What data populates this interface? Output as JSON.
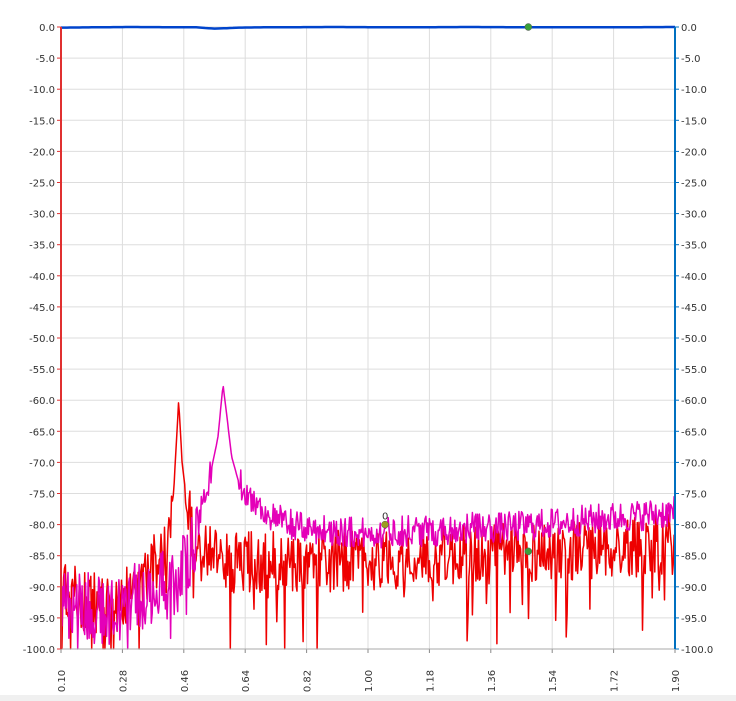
{
  "chart_data": {
    "type": "line",
    "title": "",
    "xlabel": "",
    "ylabel": "",
    "xlim": [
      0.1,
      1.9
    ],
    "ylim": [
      -100.0,
      0.0
    ],
    "x_ticks": [
      "0.10",
      "0.28",
      "0.46",
      "0.64",
      "0.82",
      "1.00",
      "1.18",
      "1.36",
      "1.54",
      "1.72",
      "1.90"
    ],
    "y_ticks_left": [
      "0.0",
      "-5.0",
      "-10.0",
      "-15.0",
      "-20.0",
      "-25.0",
      "-30.0",
      "-35.0",
      "-40.0",
      "-45.0",
      "-50.0",
      "-55.0",
      "-60.0",
      "-65.0",
      "-70.0",
      "-75.0",
      "-80.0",
      "-85.0",
      "-90.0",
      "-95.0",
      "-100.0"
    ],
    "y_ticks_right": [
      "0.0",
      "-5.0",
      "-10.0",
      "-15.0",
      "-20.0",
      "-25.0",
      "-30.0",
      "-35.0",
      "-40.0",
      "-45.0",
      "-50.0",
      "-55.0",
      "-60.0",
      "-65.0",
      "-70.0",
      "-75.0",
      "-80.0",
      "-85.0",
      "-90.0",
      "-95.0",
      "-100.0"
    ],
    "grid": true,
    "colors": {
      "red": "#ee0000",
      "magenta": "#e400b8",
      "blue": "#0044cc",
      "left_axis": "#e03030",
      "right_axis": "#0070c0",
      "grid": "#dddddd",
      "marker": "#9c9c20"
    },
    "series": [
      {
        "color": "red",
        "x": [
          0.1,
          0.16,
          0.22,
          0.28,
          0.34,
          0.38,
          0.41,
          0.43,
          0.445,
          0.455,
          0.47,
          0.49,
          0.51,
          0.55,
          0.6,
          0.7,
          0.8,
          0.9,
          1.0,
          1.1,
          1.2,
          1.3,
          1.4,
          1.5,
          1.6,
          1.7,
          1.8,
          1.9
        ],
        "y": [
          -91,
          -92,
          -93,
          -92,
          -89,
          -86,
          -82,
          -75,
          -60,
          -70,
          -77,
          -83,
          -84,
          -85,
          -86,
          -86,
          -86,
          -86,
          -85.5,
          -85.5,
          -85,
          -85,
          -84.5,
          -84.5,
          -84,
          -84,
          -83.5,
          -83
        ]
      },
      {
        "color": "magenta",
        "x": [
          0.1,
          0.16,
          0.22,
          0.28,
          0.34,
          0.4,
          0.45,
          0.48,
          0.5,
          0.53,
          0.56,
          0.575,
          0.585,
          0.6,
          0.62,
          0.66,
          0.72,
          0.8,
          0.9,
          1.0,
          1.1,
          1.2,
          1.3,
          1.4,
          1.5,
          1.6,
          1.7,
          1.8,
          1.9
        ],
        "y": [
          -92,
          -93,
          -94,
          -93,
          -91,
          -90,
          -88,
          -85,
          -80,
          -74,
          -66,
          -57.5,
          -62,
          -69,
          -73,
          -76,
          -79,
          -80.5,
          -81,
          -81.5,
          -81,
          -81,
          -80.5,
          -80.5,
          -80,
          -79.5,
          -79,
          -78.5,
          -78
        ]
      },
      {
        "color": "blue",
        "x": [
          0.1,
          0.3,
          0.5,
          0.52,
          0.55,
          0.58,
          0.62,
          0.7,
          0.9,
          1.1,
          1.3,
          1.5,
          1.7,
          1.9
        ],
        "y": [
          -0.1,
          0.0,
          -0.05,
          -0.15,
          -0.25,
          -0.2,
          -0.1,
          -0.05,
          0.0,
          -0.05,
          0.0,
          -0.05,
          -0.05,
          0.0
        ]
      }
    ],
    "markers": [
      {
        "x": 1.05,
        "y": -80.0,
        "label": "0",
        "color": "marker"
      },
      {
        "x": 1.47,
        "y": -84.3,
        "label": "",
        "color": "green"
      },
      {
        "x": 1.47,
        "y": 0.0,
        "label": "",
        "color": "green"
      }
    ]
  }
}
